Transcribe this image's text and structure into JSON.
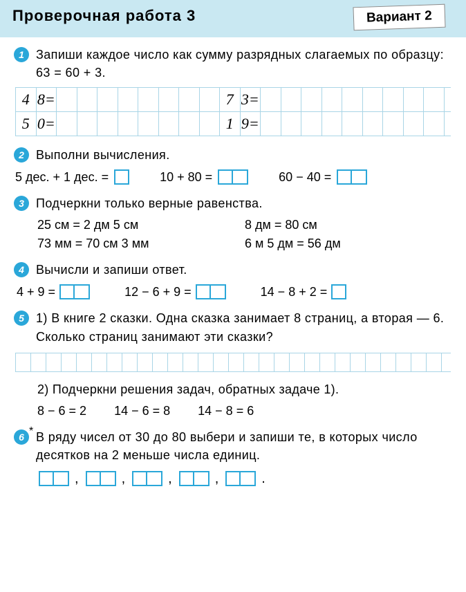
{
  "header": {
    "title": "Проверочная работа 3",
    "variant": "Вариант 2"
  },
  "colors": {
    "header_bg": "#c9e8f2",
    "circle_bg": "#2aa7d9",
    "grid_line": "#a9d5e6",
    "box_border": "#2aa7d9"
  },
  "task1": {
    "num": "1",
    "text": "Запиши каждое число как сумму разрядных слагае­мых по образцу: 63 = 60 + 3.",
    "cells": {
      "r1a": "4",
      "r1b": "8=",
      "r1c": "7",
      "r1d": "3=",
      "r2a": "5",
      "r2b": "0=",
      "r2c": "1",
      "r2d": "9="
    }
  },
  "task2": {
    "num": "2",
    "text": "Выполни вычисления.",
    "a": "5 дес. + 1 дес. =",
    "b": "10 + 80 =",
    "c": "60 − 40 ="
  },
  "task3": {
    "num": "3",
    "text": "Подчеркни только верные равенства.",
    "eq1": "25 см = 2 дм 5 см",
    "eq2": "8 дм = 80 см",
    "eq3": "73 мм = 70 см 3 мм",
    "eq4": "6 м 5 дм = 56 дм"
  },
  "task4": {
    "num": "4",
    "text": "Вычисли и запиши ответ.",
    "a": "4 + 9 =",
    "b": "12 − 6 + 9 =",
    "c": "14 − 8 + 2 ="
  },
  "task5": {
    "num": "5",
    "part1": "1) В книге 2 сказки. Одна сказка занимает 8 стра­ниц, а вторая — 6. Сколько страниц занимают эти сказки?",
    "part2_intro": "2) Подчеркни решения задач, обратных задаче 1).",
    "e1": "8 − 6 = 2",
    "e2": "14 − 6 = 8",
    "e3": "14 − 8 = 6"
  },
  "task6": {
    "num": "6",
    "text": "В ряду чисел от 30 до 80 выбери и запиши те, в которых число десятков на 2 меньше числа единиц.",
    "sep": ",",
    "end": "."
  }
}
